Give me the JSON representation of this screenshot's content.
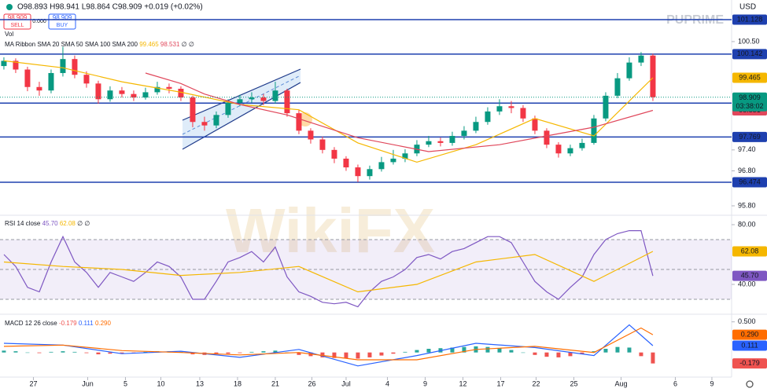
{
  "header": {
    "ohlc": "O98.893 H98.941 L98.864 C98.909 +0.019 (+0.02%)",
    "sell_price": "98.909",
    "sell": "SELL",
    "spread": "0.000",
    "buy_price": "98.909",
    "buy": "BUY",
    "volume": "Vol",
    "currency": "USD",
    "brand": "PUPRIME",
    "watermark": "WikiFX"
  },
  "chart_data": [
    {
      "type": "candlestick",
      "title": "MA Ribbon SMA 20 SMA 50 SMA 100 SMA 200",
      "empty_values": "∅ ∅",
      "x": [
        0,
        1,
        2,
        3,
        4,
        5,
        6,
        7,
        8,
        9,
        10,
        11,
        12,
        13,
        14,
        15,
        16,
        17,
        18,
        19,
        20,
        21,
        22,
        23,
        24,
        25,
        26,
        27,
        28,
        29,
        30,
        31,
        32,
        33,
        34,
        35,
        36,
        37,
        38,
        39,
        40,
        41,
        42,
        43,
        44,
        45,
        46,
        47,
        48,
        49,
        50,
        51,
        52,
        53,
        54,
        55
      ],
      "open": [
        99.8,
        99.95,
        99.7,
        99.2,
        99.1,
        99.6,
        100.0,
        99.55,
        99.3,
        98.85,
        99.1,
        99.0,
        98.9,
        99.05,
        99.2,
        99.15,
        98.9,
        98.2,
        98.1,
        98.4,
        98.75,
        98.85,
        98.9,
        98.8,
        99.1,
        98.45,
        97.95,
        97.7,
        97.4,
        97.15,
        96.9,
        96.65,
        96.85,
        97.05,
        97.15,
        97.3,
        97.55,
        97.65,
        97.6,
        97.8,
        97.95,
        98.2,
        98.5,
        98.65,
        98.6,
        98.3,
        97.95,
        97.55,
        97.3,
        97.45,
        97.6,
        98.3,
        98.95,
        99.45,
        99.9,
        100.1
      ],
      "high": [
        100.05,
        100.02,
        99.78,
        99.35,
        99.7,
        100.35,
        100.1,
        99.65,
        99.38,
        99.22,
        99.2,
        99.1,
        99.18,
        99.35,
        99.3,
        99.22,
        98.95,
        98.35,
        98.5,
        98.85,
        98.98,
        99.05,
        99.0,
        99.35,
        99.15,
        98.55,
        98.02,
        97.78,
        97.48,
        97.22,
        96.98,
        96.95,
        97.2,
        97.4,
        97.42,
        97.68,
        97.8,
        97.75,
        97.92,
        98.08,
        98.35,
        98.62,
        98.85,
        98.8,
        98.68,
        98.38,
        98.02,
        97.62,
        97.55,
        97.72,
        98.4,
        99.05,
        99.6,
        100.05,
        100.2,
        100.15
      ],
      "low": [
        99.7,
        99.6,
        99.08,
        98.95,
        99.02,
        99.5,
        99.45,
        99.18,
        98.72,
        98.78,
        98.9,
        98.8,
        98.84,
        98.98,
        99.02,
        98.8,
        98.05,
        97.95,
        98.02,
        98.32,
        98.65,
        98.75,
        98.68,
        98.72,
        98.35,
        97.85,
        97.58,
        97.3,
        97.02,
        96.8,
        96.48,
        96.55,
        96.78,
        96.98,
        97.05,
        97.22,
        97.48,
        97.5,
        97.52,
        97.7,
        97.88,
        98.12,
        98.4,
        98.45,
        98.2,
        97.85,
        97.45,
        97.18,
        97.22,
        97.38,
        97.55,
        98.22,
        98.88,
        99.38,
        99.8,
        98.8
      ],
      "close": [
        99.95,
        99.7,
        99.2,
        99.1,
        99.6,
        100.0,
        99.55,
        99.3,
        98.85,
        99.1,
        99.0,
        98.9,
        99.05,
        99.2,
        99.15,
        98.9,
        98.2,
        98.1,
        98.4,
        98.75,
        98.85,
        98.9,
        98.8,
        99.1,
        98.45,
        97.95,
        97.7,
        97.4,
        97.15,
        96.9,
        96.65,
        96.85,
        97.05,
        97.15,
        97.3,
        97.55,
        97.65,
        97.6,
        97.8,
        97.95,
        98.2,
        98.5,
        98.65,
        98.6,
        98.3,
        97.95,
        97.55,
        97.3,
        97.45,
        97.6,
        98.3,
        98.95,
        99.45,
        99.9,
        100.1,
        98.909
      ],
      "up_color": "#089981",
      "down_color": "#f23645",
      "series": [
        {
          "color": "#f5b700",
          "x": [
            0,
            5,
            10,
            15,
            20,
            25,
            30,
            35,
            40,
            45,
            50,
            55
          ],
          "values": [
            99.95,
            99.75,
            99.35,
            99.05,
            98.7,
            98.55,
            97.6,
            97.05,
            97.55,
            98.3,
            97.8,
            99.465
          ]
        },
        {
          "color": "#e0475b",
          "x": [
            12,
            15,
            17,
            20,
            24,
            30,
            36,
            42,
            46,
            50,
            55
          ],
          "values": [
            99.6,
            99.3,
            99.0,
            98.7,
            98.4,
            97.75,
            97.35,
            97.55,
            97.8,
            98.05,
            98.531
          ]
        }
      ],
      "levels": [
        101.128,
        100.142,
        98.738,
        97.769,
        96.474
      ],
      "level_color": "#1e40af",
      "countdown": "03:38:02",
      "xlim": [
        -0.33,
        61.67
      ],
      "xticks": [
        {
          "value": 2.5,
          "label": "27"
        },
        {
          "value": 7.1,
          "label": "Jun"
        },
        {
          "value": 10.3,
          "label": "5"
        },
        {
          "value": 13.3,
          "label": "10"
        },
        {
          "value": 16.6,
          "label": "13"
        },
        {
          "value": 19.8,
          "label": "18"
        },
        {
          "value": 23,
          "label": "21"
        },
        {
          "value": 26.1,
          "label": "26"
        },
        {
          "value": 29,
          "label": "Jul"
        },
        {
          "value": 32.5,
          "label": "4"
        },
        {
          "value": 35.7,
          "label": "9"
        },
        {
          "value": 38.9,
          "label": "12"
        },
        {
          "value": 42.1,
          "label": "17"
        },
        {
          "value": 45.1,
          "label": "22"
        },
        {
          "value": 48.3,
          "label": "25"
        },
        {
          "value": 52.3,
          "label": "Aug"
        },
        {
          "value": 56.9,
          "label": "6"
        },
        {
          "value": 60,
          "label": "9"
        }
      ],
      "ylim": [
        95.62,
        101.69
      ],
      "yticks": [
        {
          "value": 100.5,
          "label": "100.50"
        },
        {
          "value": 97.4,
          "label": "97.40"
        },
        {
          "value": 96.8,
          "label": "96.80"
        },
        {
          "value": 95.8,
          "label": "95.80"
        }
      ]
    },
    {
      "type": "line",
      "title": "RSI 14 close",
      "empty_values": "∅ ∅",
      "bands": [
        70,
        50,
        30
      ],
      "band_color": "#7e57c2",
      "series": [
        {
          "color": "#7e57c2",
          "x": [
            0,
            1,
            2,
            3,
            4,
            5,
            6,
            7,
            8,
            9,
            10,
            11,
            12,
            13,
            14,
            15,
            16,
            17,
            18,
            19,
            20,
            21,
            22,
            23,
            24,
            25,
            26,
            27,
            28,
            29,
            30,
            31,
            32,
            33,
            34,
            35,
            36,
            37,
            38,
            39,
            40,
            41,
            42,
            43,
            44,
            45,
            46,
            47,
            48,
            49,
            50,
            51,
            52,
            53,
            54,
            55
          ],
          "values": [
            60,
            52,
            38,
            35,
            55,
            72,
            55,
            48,
            38,
            48,
            45,
            42,
            48,
            55,
            52,
            45,
            30,
            30,
            42,
            55,
            58,
            62,
            55,
            65,
            45,
            35,
            32,
            28,
            27,
            28,
            25,
            35,
            42,
            45,
            50,
            58,
            60,
            57,
            62,
            64,
            68,
            72,
            72,
            68,
            55,
            42,
            35,
            30,
            38,
            45,
            60,
            70,
            74,
            76,
            76,
            45.7
          ],
          "last_label": "45.70"
        },
        {
          "color": "#f5b700",
          "x": [
            0,
            5,
            10,
            15,
            20,
            25,
            30,
            35,
            40,
            45,
            50,
            55
          ],
          "values": [
            55,
            52,
            50,
            46,
            48,
            52,
            35,
            40,
            55,
            60,
            42,
            62.08
          ]
        }
      ],
      "ylim": [
        21.05,
        84.2
      ],
      "yticks": [
        {
          "value": 80,
          "label": "80.00"
        },
        {
          "value": 40,
          "label": "40.00"
        }
      ]
    },
    {
      "type": "macd",
      "title": "MACD 12 26 close",
      "histogram": {
        "x": [
          0,
          1,
          2,
          3,
          4,
          5,
          6,
          7,
          8,
          9,
          10,
          11,
          12,
          13,
          14,
          15,
          16,
          17,
          18,
          19,
          20,
          21,
          22,
          23,
          24,
          25,
          26,
          27,
          28,
          29,
          30,
          31,
          32,
          33,
          34,
          35,
          36,
          37,
          38,
          39,
          40,
          41,
          42,
          43,
          44,
          45,
          46,
          47,
          48,
          49,
          50,
          51,
          52,
          53,
          54,
          55
        ],
        "values": [
          0.03,
          0.02,
          0.0,
          -0.01,
          0.01,
          0.02,
          0.01,
          -0.01,
          -0.03,
          -0.02,
          -0.02,
          -0.01,
          0.01,
          0.02,
          0.02,
          0.01,
          -0.03,
          -0.04,
          -0.03,
          -0.02,
          -0.01,
          0.01,
          0.02,
          0.03,
          0.0,
          -0.04,
          -0.06,
          -0.08,
          -0.09,
          -0.1,
          -0.1,
          -0.08,
          -0.05,
          -0.02,
          0.01,
          0.04,
          0.06,
          0.07,
          0.08,
          0.09,
          0.1,
          0.09,
          0.07,
          0.04,
          0.0,
          -0.04,
          -0.07,
          -0.08,
          -0.06,
          -0.03,
          0.02,
          0.06,
          0.09,
          0.08,
          -0.06,
          -0.179
        ],
        "up_color": "#26a69a",
        "down_color": "#ef5350"
      },
      "series": [
        {
          "color": "#2962ff",
          "x": [
            0,
            5,
            10,
            15,
            20,
            25,
            30,
            35,
            40,
            45,
            50,
            53,
            55
          ],
          "values": [
            0.15,
            0.12,
            -0.02,
            0.02,
            -0.08,
            0.05,
            -0.22,
            -0.05,
            0.15,
            0.08,
            -0.05,
            0.45,
            0.111
          ]
        },
        {
          "color": "#ff6d00",
          "x": [
            0,
            5,
            10,
            15,
            20,
            25,
            30,
            35,
            40,
            45,
            50,
            54,
            55
          ],
          "values": [
            0.1,
            0.12,
            0.03,
            0.0,
            -0.04,
            0.0,
            -0.12,
            -0.12,
            0.05,
            0.1,
            0.0,
            0.4,
            0.29
          ],
          "last_label": "0.290"
        }
      ],
      "ylim": [
        -0.376,
        0.586
      ],
      "yticks": [
        {
          "value": 0.5,
          "label": "0.500"
        }
      ]
    }
  ]
}
